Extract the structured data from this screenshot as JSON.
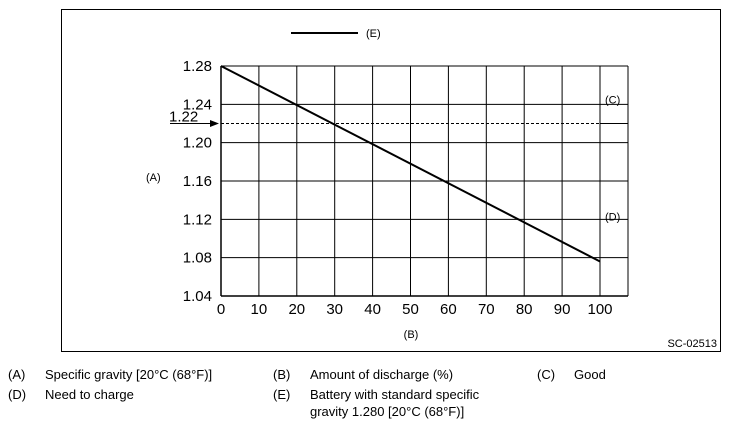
{
  "figure_id": "SC-02513",
  "chart_data": {
    "type": "line",
    "x": [
      0,
      100
    ],
    "series": [
      {
        "values": [
          1.28,
          1.076
        ]
      }
    ],
    "xticks": [
      0,
      10,
      20,
      30,
      40,
      50,
      60,
      70,
      80,
      90,
      100
    ],
    "yticks": [
      "1.28",
      "1.24",
      "1.20",
      "1.16",
      "1.12",
      "1.08",
      "1.04"
    ],
    "xlim": [
      0,
      100
    ],
    "ylim": [
      1.04,
      1.28
    ],
    "xlabel": "(B)",
    "ylabel": "(A)",
    "legend_marker": "(E)",
    "threshold": {
      "value": 1.22,
      "label": "1.22",
      "upper_label": "(C)",
      "lower_label": "(D)"
    },
    "grid": true,
    "legend_position": "top"
  },
  "legend_items": [
    {
      "key": "(A)",
      "text": "Specific gravity [20°C (68°F)]"
    },
    {
      "key": "(B)",
      "text": "Amount of discharge (%)"
    },
    {
      "key": "(C)",
      "text": "Good"
    },
    {
      "key": "(D)",
      "text": "Need to charge"
    },
    {
      "key": "(E)",
      "text": "Battery with standard specific",
      "text2": "gravity 1.280 [20°C (68°F)]"
    }
  ],
  "colors": {
    "line": "#000000",
    "grid": "#000000"
  }
}
